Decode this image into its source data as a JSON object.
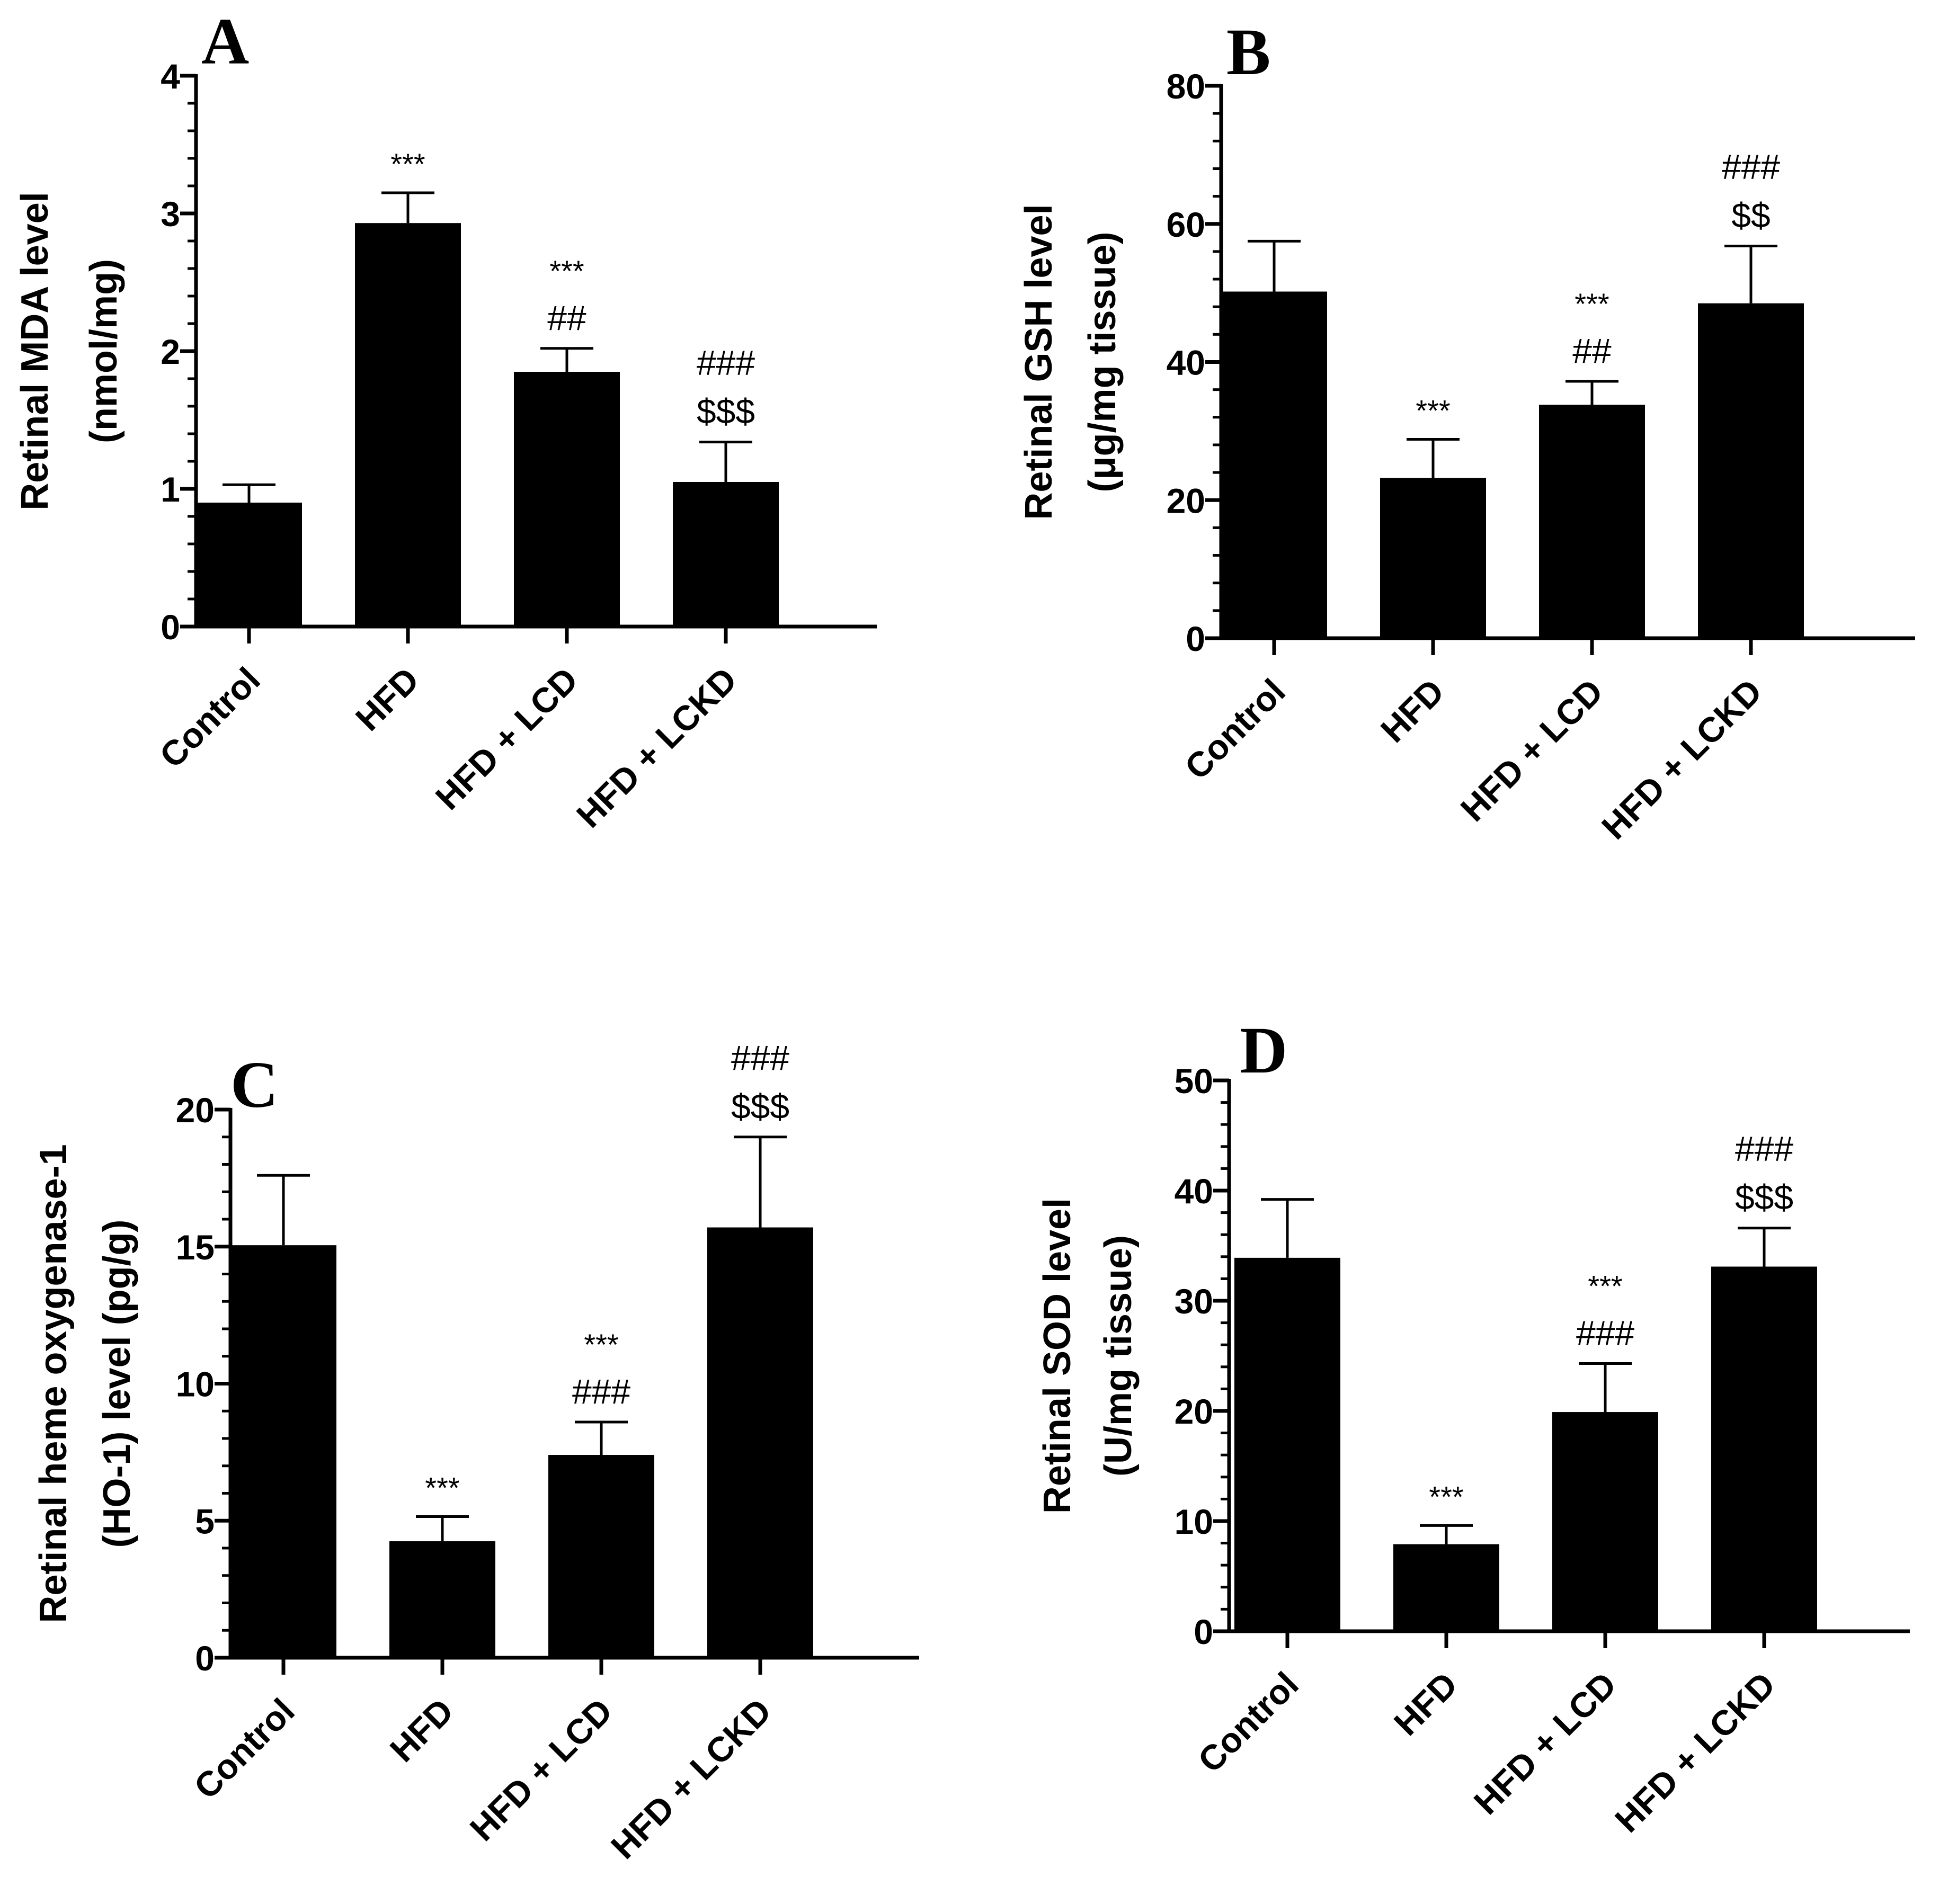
{
  "chart_data": [
    {
      "type": "bar",
      "panel": "A",
      "ylabel_line1": "Retinal MDA level",
      "ylabel_line2": "(nmol/mg)",
      "ylim": [
        0,
        4
      ],
      "yticks": [
        0,
        1,
        2,
        3,
        4
      ],
      "minor_per_major": 5,
      "categories": [
        "Control",
        "HFD",
        "HFD + LCD",
        "HFD + LCKD"
      ],
      "values": [
        0.9,
        2.93,
        1.85,
        1.05
      ],
      "errors": [
        0.13,
        0.22,
        0.17,
        0.29
      ],
      "annotations": [
        [],
        [
          "***"
        ],
        [
          "***",
          "##"
        ],
        [
          "###",
          "$$$"
        ]
      ]
    },
    {
      "type": "bar",
      "panel": "B",
      "ylabel_line1": "Retinal GSH level",
      "ylabel_line2": "(μg/mg tissue)",
      "ylim": [
        0,
        80
      ],
      "yticks": [
        0,
        20,
        40,
        60,
        80
      ],
      "minor_per_major": 5,
      "categories": [
        "Control",
        "HFD",
        "HFD + LCD",
        "HFD + LCKD"
      ],
      "values": [
        50.2,
        23.2,
        33.8,
        48.5
      ],
      "errors": [
        7.3,
        5.6,
        3.4,
        8.3
      ],
      "annotations": [
        [],
        [
          "***"
        ],
        [
          "***",
          "##"
        ],
        [
          "###",
          "$$"
        ]
      ]
    },
    {
      "type": "bar",
      "panel": "C",
      "ylabel_line1": "Retinal heme oxygenase-1",
      "ylabel_line2": "(HO-1) level (pg/g)",
      "ylim": [
        0,
        20
      ],
      "yticks": [
        0,
        5,
        10,
        15,
        20
      ],
      "minor_per_major": 5,
      "categories": [
        "Control",
        "HFD",
        "HFD + LCD",
        "HFD + LCKD"
      ],
      "values": [
        15.05,
        4.25,
        7.4,
        15.7
      ],
      "errors": [
        2.55,
        0.9,
        1.2,
        3.3
      ],
      "annotations": [
        [],
        [
          "***"
        ],
        [
          "***",
          "###"
        ],
        [
          "###",
          "$$$"
        ]
      ]
    },
    {
      "type": "bar",
      "panel": "D",
      "ylabel_line1": "Retinal SOD level",
      "ylabel_line2": "(U/mg tissue)",
      "ylim": [
        0,
        50
      ],
      "yticks": [
        0,
        10,
        20,
        30,
        40,
        50
      ],
      "minor_per_major": 5,
      "categories": [
        "Control",
        "HFD",
        "HFD + LCD",
        "HFD + LCKD"
      ],
      "values": [
        33.9,
        7.9,
        19.9,
        33.1
      ],
      "errors": [
        5.3,
        1.7,
        4.4,
        3.5
      ],
      "annotations": [
        [],
        [
          "***"
        ],
        [
          "***",
          "###"
        ],
        [
          "###",
          "$$$"
        ]
      ]
    }
  ],
  "colors": {
    "bar": "#000000",
    "axis": "#000000",
    "background": "#ffffff"
  }
}
